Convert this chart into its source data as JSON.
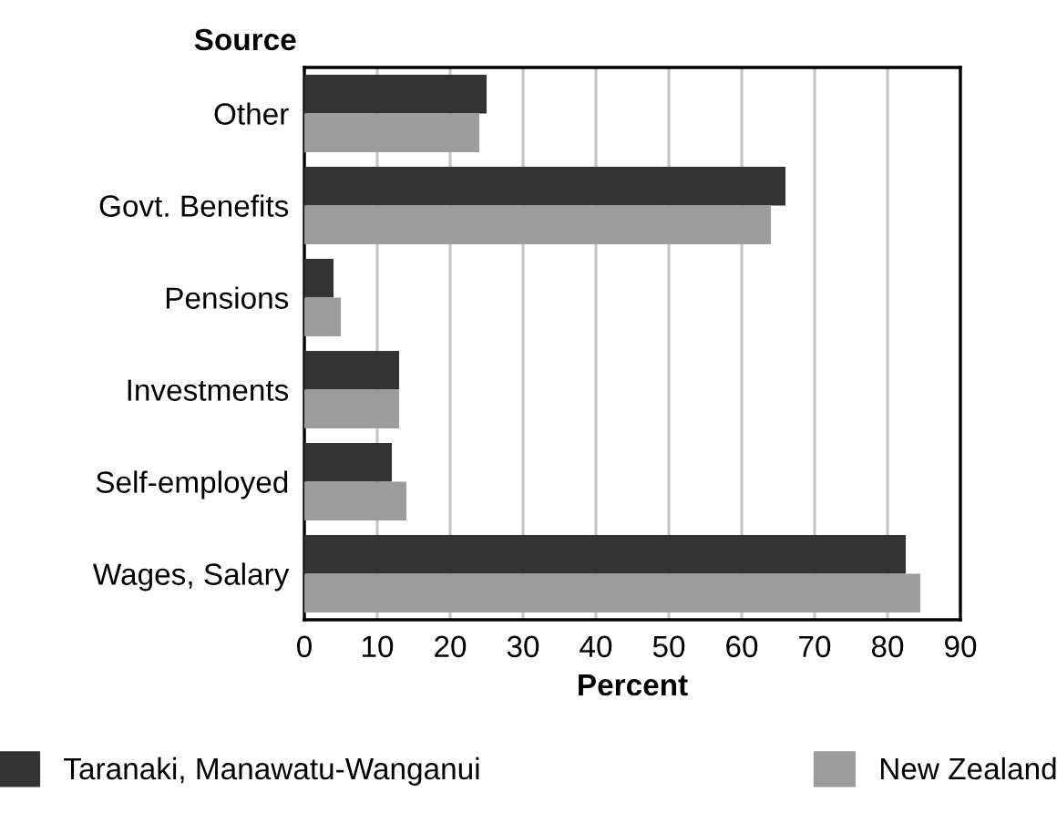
{
  "chart_data": {
    "type": "bar",
    "orientation": "horizontal",
    "ylabel": "Source",
    "xlabel": "Percent",
    "categories": [
      "Other",
      "Govt. Benefits",
      "Pensions",
      "Investments",
      "Self-employed",
      "Wages, Salary"
    ],
    "series": [
      {
        "name": "Taranaki, Manawatu-Wanganui",
        "color": "#333333",
        "values": [
          25,
          66,
          4,
          13,
          12,
          82.5
        ]
      },
      {
        "name": "New Zealand",
        "color": "#9c9c9c",
        "values": [
          24,
          64,
          5,
          13,
          14,
          84.5
        ]
      }
    ],
    "xlim": [
      0,
      90
    ],
    "xticks": [
      0,
      10,
      20,
      30,
      40,
      50,
      60,
      70,
      80,
      90
    ],
    "grid": "x",
    "legend": "bottom"
  }
}
